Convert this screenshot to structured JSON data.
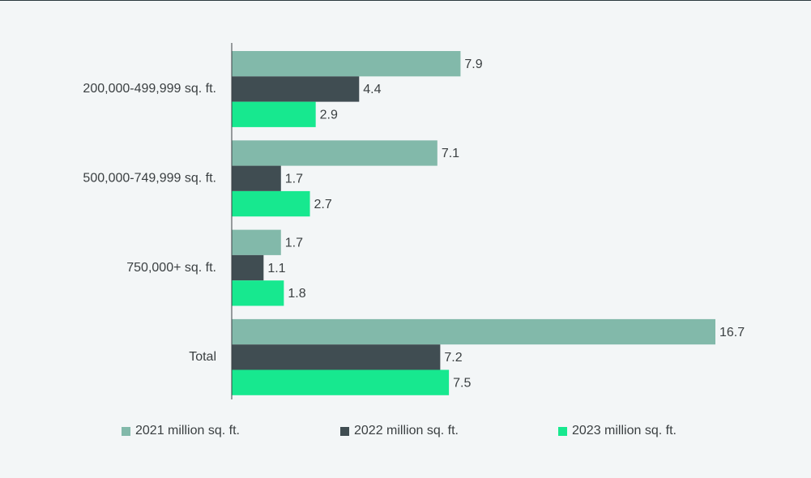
{
  "chart_data": {
    "type": "bar",
    "orientation": "horizontal",
    "categories": [
      "200,000-499,999 sq. ft.",
      "500,000-749,999 sq. ft.",
      "750,000+ sq. ft.",
      "Total"
    ],
    "series": [
      {
        "name": "2021 million sq. ft.",
        "color": "#82b9aa",
        "values": [
          7.9,
          7.1,
          1.7,
          16.7
        ],
        "labels": [
          "7.9",
          "7.1",
          "1.7",
          "16.7"
        ]
      },
      {
        "name": "2022 million sq. ft.",
        "color": "#404d52",
        "values": [
          4.4,
          1.7,
          1.1,
          7.2
        ],
        "labels": [
          "4.4",
          "1.7",
          "1.1",
          "7.2"
        ]
      },
      {
        "name": "2023 million sq. ft.",
        "color": "#17e88f",
        "values": [
          2.9,
          2.7,
          1.8,
          7.5
        ],
        "labels": [
          "2.9",
          "2.7",
          "1.8",
          "7.5"
        ]
      }
    ],
    "title": "",
    "xlabel": "",
    "ylabel": "",
    "xlim": [
      0,
      16.7
    ],
    "grid": false,
    "legend_position": "bottom"
  }
}
